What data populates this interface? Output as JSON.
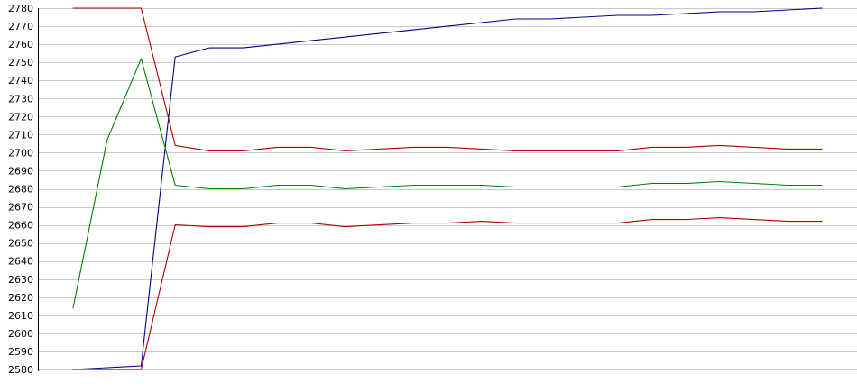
{
  "chart_data": {
    "type": "line",
    "title": "",
    "xlabel": "",
    "ylabel": "",
    "ylim": [
      2580,
      2780
    ],
    "yticks": [
      2580,
      2590,
      2600,
      2610,
      2620,
      2630,
      2640,
      2650,
      2660,
      2670,
      2680,
      2690,
      2700,
      2710,
      2720,
      2730,
      2740,
      2750,
      2760,
      2770,
      2780
    ],
    "grid": true,
    "legend": "none",
    "x": [
      0,
      1,
      2,
      3,
      4,
      5,
      6,
      7,
      8,
      9,
      10,
      11,
      12,
      13,
      14,
      15,
      16,
      17,
      18,
      19,
      20,
      21,
      22
    ],
    "series": [
      {
        "color": "#00008b",
        "values": [
          2580,
          2581,
          2582,
          2753,
          2758,
          2758,
          2760,
          2762,
          2764,
          2766,
          2768,
          2770,
          2772,
          2774,
          2774,
          2775,
          2776,
          2776,
          2777,
          2778,
          2778,
          2779,
          2780
        ]
      },
      {
        "color": "#b00000",
        "values": [
          2780,
          2780,
          2780,
          2704,
          2701,
          2701,
          2703,
          2703,
          2701,
          2702,
          2703,
          2703,
          2702,
          2701,
          2701,
          2701,
          2701,
          2703,
          2703,
          2704,
          2703,
          2702,
          2702
        ]
      },
      {
        "color": "#008000",
        "values": [
          2614,
          2707,
          2752,
          2682,
          2680,
          2680,
          2682,
          2682,
          2680,
          2681,
          2682,
          2682,
          2682,
          2681,
          2681,
          2681,
          2681,
          2683,
          2683,
          2684,
          2683,
          2682,
          2682
        ]
      },
      {
        "color": "#b00000",
        "values": [
          2580,
          2580,
          2580,
          2660,
          2659,
          2659,
          2661,
          2661,
          2659,
          2660,
          2661,
          2661,
          2662,
          2661,
          2661,
          2661,
          2661,
          2663,
          2663,
          2664,
          2663,
          2662,
          2662
        ]
      }
    ]
  }
}
